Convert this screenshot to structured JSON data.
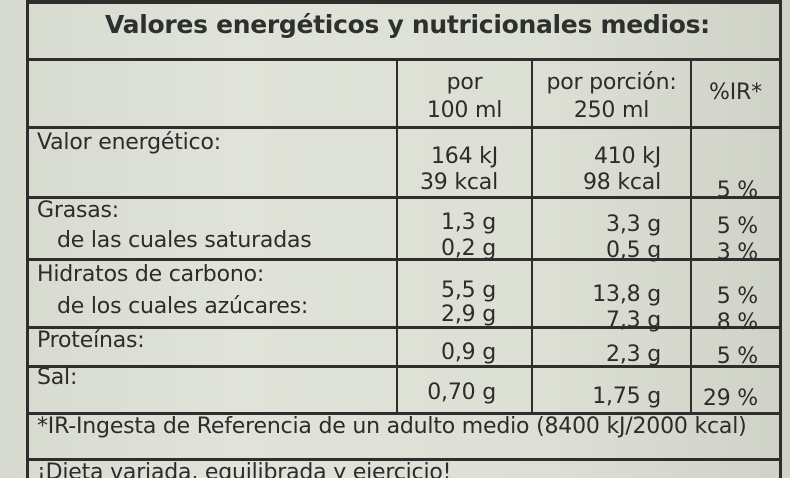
{
  "title": "Valores energéticos y nutricionales medios:",
  "headers": {
    "col1_line1": "por",
    "col1_line2": "100 ml",
    "col2_line1": "por porción:",
    "col2_line2": "250 ml",
    "col3": "%IR*"
  },
  "rows": {
    "energy": {
      "label": "Valor energético:",
      "per100_kj": "164 kJ",
      "per100_kcal": "39 kcal",
      "portion_kj": "410 kJ",
      "portion_kcal": "98 kcal",
      "ir": "5 %"
    },
    "fat": {
      "label": "Grasas:",
      "sub_label": "de las cuales saturadas",
      "per100": "1,3 g",
      "per100_sub": "0,2 g",
      "portion": "3,3 g",
      "portion_sub": "0,5 g",
      "ir": "5 %",
      "ir_sub": "3 %"
    },
    "carbs": {
      "label": "Hidratos de carbono:",
      "sub_label": "de los cuales azúcares:",
      "per100": "5,5 g",
      "per100_sub": "2,9 g",
      "portion": "13,8 g",
      "portion_sub": "7,3 g",
      "ir": "5 %",
      "ir_sub": "8 %"
    },
    "protein": {
      "label": "Proteínas:",
      "per100": "0,9 g",
      "portion": "2,3 g",
      "ir": "5 %"
    },
    "salt": {
      "label": "Sal:",
      "per100": "0,70 g",
      "portion": "1,75 g",
      "ir": "29 %"
    }
  },
  "footnote": "*IR-Ingesta de Referencia de un adulto medio (8400 kJ/2000 kcal)",
  "slogan": "¡Dieta variada, equilibrada y ejercicio!"
}
